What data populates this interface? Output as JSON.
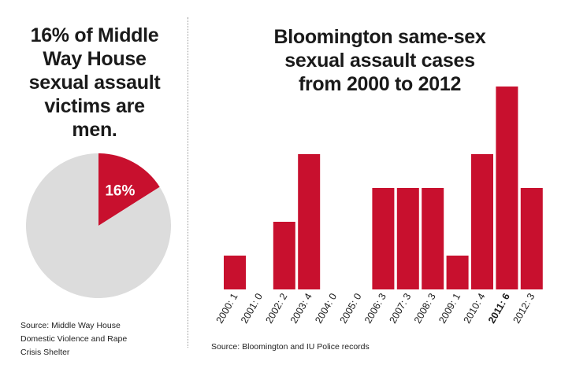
{
  "pie_panel": {
    "title_lines": [
      "16% of Middle",
      "Way House",
      "sexual assault",
      "victims are",
      "men."
    ],
    "slice_label": "16%",
    "source_lines": [
      "Source: Middle Way House",
      "Domestic Violence and Rape",
      "Crisis Shelter"
    ]
  },
  "bar_panel": {
    "title_lines": [
      "Bloomington same-sex",
      "sexual assault cases",
      "from 2000 to 2012"
    ],
    "source": "Source: Bloomington and IU Police records"
  },
  "colors": {
    "accent": "#c8102e",
    "pie_rest": "#dcdcdc",
    "text": "#1a1a1a"
  },
  "chart_data": [
    {
      "type": "pie",
      "slices": [
        {
          "label": "16%",
          "value": 16
        },
        {
          "label": "",
          "value": 84
        }
      ]
    },
    {
      "type": "bar",
      "categories": [
        "2000: 1",
        "2001: 0",
        "2002: 2",
        "2003: 4",
        "2004: 0",
        "2005: 0",
        "2006: 3",
        "2007: 3",
        "2008: 3",
        "2009: 1",
        "2010: 4",
        "2011: 6",
        "2012: 3"
      ],
      "values": [
        1,
        0,
        2,
        4,
        0,
        0,
        3,
        3,
        3,
        1,
        4,
        6,
        3
      ],
      "emphasized_category": "2011: 6",
      "ylim": [
        0,
        6
      ],
      "grid": false,
      "title": "Bloomington same-sex sexual assault cases from 2000 to 2012",
      "xlabel": "",
      "ylabel": ""
    }
  ]
}
